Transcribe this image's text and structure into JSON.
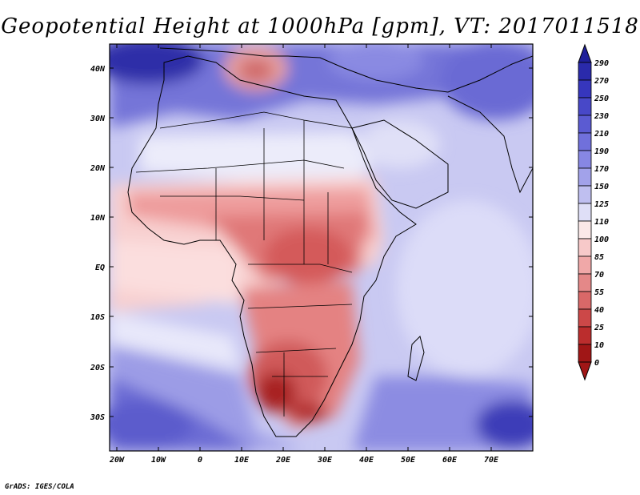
{
  "title": "Geopotential Height at 1000hPa [gpm], VT: 2017011518",
  "credit": "GrADS: IGES/COLA",
  "map": {
    "lat_labels": [
      "40N",
      "30N",
      "20N",
      "10N",
      "EQ",
      "10S",
      "20S",
      "30S"
    ],
    "lon_labels": [
      "20W",
      "10W",
      "0",
      "10E",
      "20E",
      "30E",
      "40E",
      "50E",
      "60E",
      "70E"
    ]
  },
  "colorbar": {
    "levels": [
      "290",
      "270",
      "250",
      "230",
      "210",
      "190",
      "170",
      "150",
      "125",
      "110",
      "100",
      "85",
      "70",
      "55",
      "40",
      "25",
      "10",
      "0"
    ],
    "colors": [
      "#1f1f9a",
      "#2a2aab",
      "#3636bd",
      "#4848c8",
      "#5b5bd2",
      "#7070db",
      "#8787e3",
      "#a2a2ea",
      "#bfbff0",
      "#dfdff7",
      "#fbe8e8",
      "#f7c9c9",
      "#f0a8a8",
      "#e48888",
      "#d96868",
      "#cc4848",
      "#bb2d2d",
      "#a01616"
    ]
  }
}
